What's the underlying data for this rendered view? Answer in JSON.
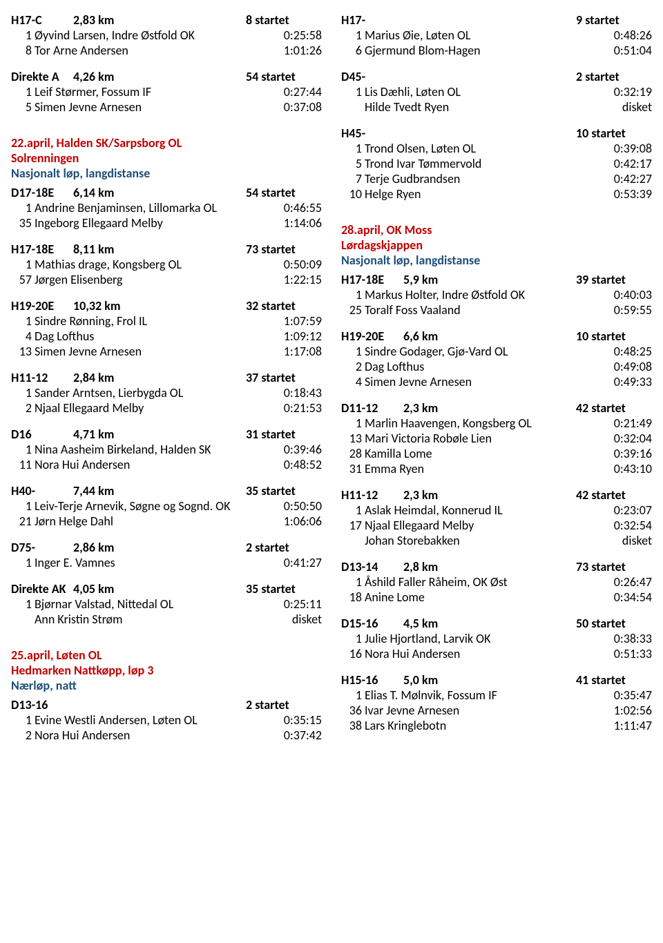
{
  "left": {
    "blocks": [
      {
        "type": "class",
        "code": "H17-C",
        "dist": "2,83 km",
        "start": "8 startet",
        "rows": [
          {
            "pos": "1",
            "name": "Øyvind Larsen, Indre Østfold OK",
            "time": "0:25:58"
          },
          {
            "pos": "8",
            "name": "Tor Arne Andersen",
            "time": "1:01:26"
          }
        ]
      },
      {
        "type": "class",
        "code": "Direkte A",
        "dist": "4,26 km",
        "start": "54 startet",
        "rows": [
          {
            "pos": "1",
            "name": "Leif Størmer, Fossum IF",
            "time": "0:27:44"
          },
          {
            "pos": "5",
            "name": "Simen Jevne Arnesen",
            "time": "0:37:08"
          }
        ]
      },
      {
        "type": "event",
        "date": "22.april,",
        "name": "Halden SK/Sarpsborg OL",
        "sub1": "Solrenningen",
        "sub2": "Nasjonalt løp, langdistanse"
      },
      {
        "type": "class",
        "code": "D17-18E",
        "dist": "6,14 km",
        "start": "54 startet",
        "rows": [
          {
            "pos": "1",
            "name": "Andrine Benjaminsen, Lillomarka OL",
            "time": "0:46:55"
          },
          {
            "pos": "35",
            "name": "Ingeborg Ellegaard Melby",
            "time": "1:14:06"
          }
        ]
      },
      {
        "type": "class",
        "code": "H17-18E",
        "dist": "8,11 km",
        "start": "73 startet",
        "rows": [
          {
            "pos": "1",
            "name": "Mathias drage, Kongsberg OL",
            "time": "0:50:09"
          },
          {
            "pos": "57",
            "name": "Jørgen Elisenberg",
            "time": "1:22:15"
          }
        ]
      },
      {
        "type": "class",
        "code": "H19-20E",
        "dist": "10,32 km",
        "start": "32 startet",
        "rows": [
          {
            "pos": "1",
            "name": "Sindre Rønning, Frol IL",
            "time": "1:07:59"
          },
          {
            "pos": "4",
            "name": "Dag Lofthus",
            "time": "1:09:12"
          },
          {
            "pos": "13",
            "name": "Simen Jevne Arnesen",
            "time": "1:17:08"
          }
        ]
      },
      {
        "type": "class",
        "code": "H11-12",
        "dist": "2,84 km",
        "start": "37 startet",
        "rows": [
          {
            "pos": "1",
            "name": "Sander Arntsen, Lierbygda OL",
            "time": "0:18:43"
          },
          {
            "pos": "2",
            "name": "Njaal Ellegaard Melby",
            "time": "0:21:53"
          }
        ]
      },
      {
        "type": "class",
        "code": "D16",
        "dist": "4,71 km",
        "start": "31 startet",
        "rows": [
          {
            "pos": "1",
            "name": "Nina Aasheim Birkeland, Halden SK",
            "time": "0:39:46"
          },
          {
            "pos": "11",
            "name": "Nora Hui Andersen",
            "time": "0:48:52"
          }
        ]
      },
      {
        "type": "class",
        "code": "H40-",
        "dist": "7,44 km",
        "start": "35 startet",
        "rows": [
          {
            "pos": "1",
            "name": "Leiv-Terje Arnevik, Søgne og Sognd. OK",
            "time": "0:50:50"
          },
          {
            "pos": "21",
            "name": "Jørn Helge Dahl",
            "time": "1:06:06"
          }
        ]
      },
      {
        "type": "class",
        "code": "D75-",
        "dist": "2,86 km",
        "start": "2 startet",
        "rows": [
          {
            "pos": "1",
            "name": "Inger E. Vamnes",
            "time": "0:41:27"
          }
        ]
      },
      {
        "type": "class",
        "code": "Direkte AK",
        "dist": "4,05 km",
        "start": "35 startet",
        "rows": [
          {
            "pos": "1",
            "name": "Bjørnar Valstad, Nittedal OL",
            "time": "0:25:11"
          },
          {
            "pos": "",
            "name": "Ann Kristin Strøm",
            "time": "disket"
          }
        ]
      },
      {
        "type": "event",
        "date": "25.april,",
        "name": "Løten OL",
        "sub1": "Hedmarken Nattkøpp, løp 3",
        "sub2": "Nærløp, natt"
      },
      {
        "type": "class",
        "code": "D13-16",
        "dist": "",
        "start": "2 startet",
        "rows": [
          {
            "pos": "1",
            "name": "Evine Westli Andersen, Løten OL",
            "time": "0:35:15"
          },
          {
            "pos": "2",
            "name": "Nora Hui Andersen",
            "time": "0:37:42"
          }
        ]
      }
    ]
  },
  "right": {
    "blocks": [
      {
        "type": "class",
        "code": "H17-",
        "dist": "",
        "start": "9 startet",
        "rows": [
          {
            "pos": "1",
            "name": "Marius Øie, Løten OL",
            "time": "0:48:26"
          },
          {
            "pos": "6",
            "name": "Gjermund Blom-Hagen",
            "time": "0:51:04"
          }
        ]
      },
      {
        "type": "class",
        "code": "D45-",
        "dist": "",
        "start": "2 startet",
        "rows": [
          {
            "pos": "1",
            "name": "Lis Dæhli, Løten OL",
            "time": "0:32:19"
          },
          {
            "pos": "",
            "name": "Hilde Tvedt Ryen",
            "time": "disket"
          }
        ]
      },
      {
        "type": "class",
        "code": "H45-",
        "dist": "",
        "start": "10 startet",
        "rows": [
          {
            "pos": "1",
            "name": "Trond Olsen, Løten OL",
            "time": "0:39:08"
          },
          {
            "pos": "5",
            "name": "Trond Ivar Tømmervold",
            "time": "0:42:17"
          },
          {
            "pos": "7",
            "name": "Terje Gudbrandsen",
            "time": "0:42:27"
          },
          {
            "pos": "10",
            "name": "Helge Ryen",
            "time": "0:53:39"
          }
        ]
      },
      {
        "type": "event",
        "date": "28.april,",
        "name": "OK Moss",
        "sub1": "Lørdagskjappen",
        "sub2": "Nasjonalt løp, langdistanse"
      },
      {
        "type": "class",
        "code": "H17-18E",
        "dist": "5,9 km",
        "start": "39 startet",
        "rows": [
          {
            "pos": "1",
            "name": "Markus Holter, Indre Østfold OK",
            "time": "0:40:03"
          },
          {
            "pos": "25",
            "name": "Toralf Foss Vaaland",
            "time": "0:59:55"
          }
        ]
      },
      {
        "type": "class",
        "code": "H19-20E",
        "dist": "6,6 km",
        "start": "10 startet",
        "rows": [
          {
            "pos": "1",
            "name": "Sindre Godager, Gjø-Vard OL",
            "time": "0:48:25"
          },
          {
            "pos": "2",
            "name": "Dag Lofthus",
            "time": "0:49:08"
          },
          {
            "pos": "4",
            "name": "Simen Jevne Arnesen",
            "time": "0:49:33"
          }
        ]
      },
      {
        "type": "class",
        "code": "D11-12",
        "dist": "2,3 km",
        "start": "42 startet",
        "rows": [
          {
            "pos": "1",
            "name": "Marlin Haavengen, Kongsberg OL",
            "time": "0:21:49"
          },
          {
            "pos": "13",
            "name": "Mari Victoria Robøle Lien",
            "time": "0:32:04"
          },
          {
            "pos": "28",
            "name": "Kamilla Lome",
            "time": "0:39:16"
          },
          {
            "pos": "31",
            "name": "Emma Ryen",
            "time": "0:43:10"
          }
        ]
      },
      {
        "type": "class",
        "code": "H11-12",
        "dist": "2,3 km",
        "start": "42 startet",
        "rows": [
          {
            "pos": "1",
            "name": "Aslak Heimdal, Konnerud IL",
            "time": "0:23:07"
          },
          {
            "pos": "17",
            "name": "Njaal Ellegaard Melby",
            "time": "0:32:54"
          },
          {
            "pos": "",
            "name": "Johan Storebakken",
            "time": "disket"
          }
        ]
      },
      {
        "type": "class",
        "code": "D13-14",
        "dist": "2,8 km",
        "start": "73 startet",
        "rows": [
          {
            "pos": "1",
            "name": "Åshild Faller Råheim, OK Øst",
            "time": "0:26:47"
          },
          {
            "pos": "18",
            "name": "Anine Lome",
            "time": "0:34:54"
          }
        ]
      },
      {
        "type": "class",
        "code": "D15-16",
        "dist": "4,5 km",
        "start": "50 startet",
        "rows": [
          {
            "pos": "1",
            "name": "Julie Hjortland, Larvik OK",
            "time": "0:38:33"
          },
          {
            "pos": "16",
            "name": "Nora Hui Andersen",
            "time": "0:51:33"
          }
        ]
      },
      {
        "type": "class",
        "code": "H15-16",
        "dist": "5,0 km",
        "start": "41 startet",
        "rows": [
          {
            "pos": "1",
            "name": "Elias T. Mølnvik, Fossum IF",
            "time": "0:35:47"
          },
          {
            "pos": "36",
            "name": "Ivar Jevne Arnesen",
            "time": "1:02:56"
          },
          {
            "pos": "38",
            "name": "Lars Kringlebotn",
            "time": "1:11:47"
          }
        ]
      }
    ]
  }
}
